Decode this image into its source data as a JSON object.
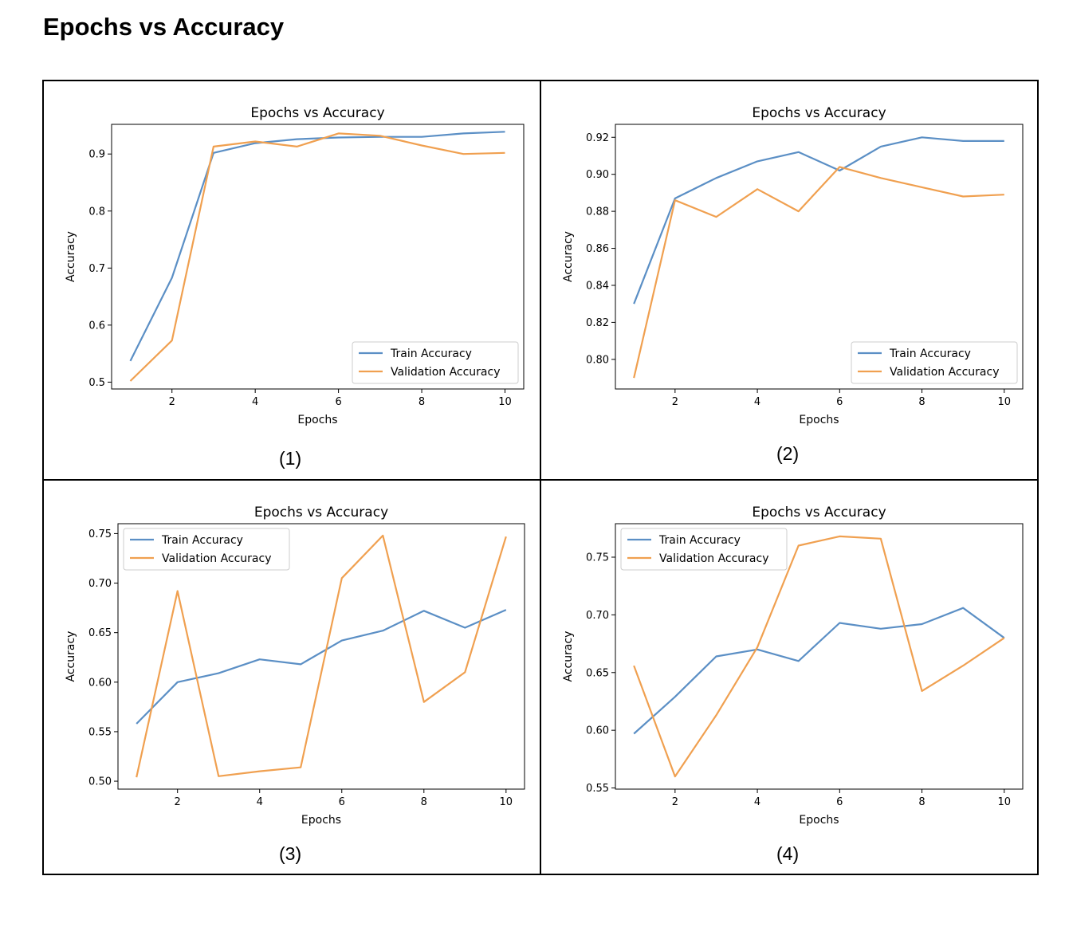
{
  "heading": "Epochs vs Accuracy",
  "colors": {
    "train": "#5b8fc5",
    "validation": "#f0a050",
    "axis": "#000000"
  },
  "chart_data": [
    {
      "type": "line",
      "caption": "(1)",
      "title": "Epochs vs Accuracy",
      "xlabel": "Epochs",
      "ylabel": "Accuracy",
      "xlim": [
        0.55,
        10.45
      ],
      "ylim": [
        0.488,
        0.952
      ],
      "xticks": [
        2,
        4,
        6,
        8,
        10
      ],
      "yticks": [
        0.5,
        0.6,
        0.7,
        0.8,
        0.9
      ],
      "ytick_labels": [
        "0.5",
        "0.6",
        "0.7",
        "0.8",
        "0.9"
      ],
      "legend_position": "lower-right",
      "x": [
        1,
        2,
        3,
        4,
        5,
        6,
        7,
        8,
        9,
        10
      ],
      "series": [
        {
          "name": "Train Accuracy",
          "values": [
            0.537,
            0.683,
            0.902,
            0.919,
            0.926,
            0.929,
            0.93,
            0.93,
            0.936,
            0.939
          ]
        },
        {
          "name": "Validation Accuracy",
          "values": [
            0.502,
            0.573,
            0.913,
            0.922,
            0.913,
            0.936,
            0.932,
            0.915,
            0.9,
            0.902
          ]
        }
      ]
    },
    {
      "type": "line",
      "caption": "(2)",
      "title": "Epochs vs Accuracy",
      "xlabel": "Epochs",
      "ylabel": "Accuracy",
      "xlim": [
        0.55,
        10.45
      ],
      "ylim": [
        0.784,
        0.927
      ],
      "xticks": [
        2,
        4,
        6,
        8,
        10
      ],
      "yticks": [
        0.8,
        0.82,
        0.84,
        0.86,
        0.88,
        0.9,
        0.92
      ],
      "ytick_labels": [
        "0.80",
        "0.82",
        "0.84",
        "0.86",
        "0.88",
        "0.90",
        "0.92"
      ],
      "legend_position": "lower-right",
      "x": [
        1,
        2,
        3,
        4,
        5,
        6,
        7,
        8,
        9,
        10
      ],
      "series": [
        {
          "name": "Train Accuracy",
          "values": [
            0.83,
            0.887,
            0.898,
            0.907,
            0.912,
            0.902,
            0.915,
            0.92,
            0.918,
            0.918
          ]
        },
        {
          "name": "Validation Accuracy",
          "values": [
            0.79,
            0.886,
            0.877,
            0.892,
            0.88,
            0.904,
            0.898,
            0.893,
            0.888,
            0.889
          ]
        }
      ]
    },
    {
      "type": "line",
      "caption": "(3)",
      "title": "Epochs vs Accuracy",
      "xlabel": "Epochs",
      "ylabel": "Accuracy",
      "xlim": [
        0.55,
        10.45
      ],
      "ylim": [
        0.492,
        0.76
      ],
      "xticks": [
        2,
        4,
        6,
        8,
        10
      ],
      "yticks": [
        0.5,
        0.55,
        0.6,
        0.65,
        0.7,
        0.75
      ],
      "ytick_labels": [
        "0.50",
        "0.55",
        "0.60",
        "0.65",
        "0.70",
        "0.75"
      ],
      "legend_position": "upper-left",
      "x": [
        1,
        2,
        3,
        4,
        5,
        6,
        7,
        8,
        9,
        10
      ],
      "series": [
        {
          "name": "Train Accuracy",
          "values": [
            0.558,
            0.6,
            0.609,
            0.623,
            0.618,
            0.642,
            0.652,
            0.672,
            0.655,
            0.673
          ]
        },
        {
          "name": "Validation Accuracy",
          "values": [
            0.504,
            0.692,
            0.505,
            0.51,
            0.514,
            0.705,
            0.748,
            0.58,
            0.61,
            0.747
          ]
        }
      ]
    },
    {
      "type": "line",
      "caption": "(4)",
      "title": "Epochs vs Accuracy",
      "xlabel": "Epochs",
      "ylabel": "Accuracy",
      "xlim": [
        0.55,
        10.45
      ],
      "ylim": [
        0.549,
        0.779
      ],
      "xticks": [
        2,
        4,
        6,
        8,
        10
      ],
      "yticks": [
        0.55,
        0.6,
        0.65,
        0.7,
        0.75
      ],
      "ytick_labels": [
        "0.55",
        "0.60",
        "0.65",
        "0.70",
        "0.75"
      ],
      "legend_position": "upper-left",
      "x": [
        1,
        2,
        3,
        4,
        5,
        6,
        7,
        8,
        9,
        10
      ],
      "series": [
        {
          "name": "Train Accuracy",
          "values": [
            0.597,
            0.629,
            0.664,
            0.67,
            0.66,
            0.693,
            0.688,
            0.692,
            0.706,
            0.68
          ]
        },
        {
          "name": "Validation Accuracy",
          "values": [
            0.656,
            0.56,
            0.613,
            0.672,
            0.76,
            0.768,
            0.766,
            0.634,
            0.656,
            0.68
          ]
        }
      ]
    }
  ]
}
